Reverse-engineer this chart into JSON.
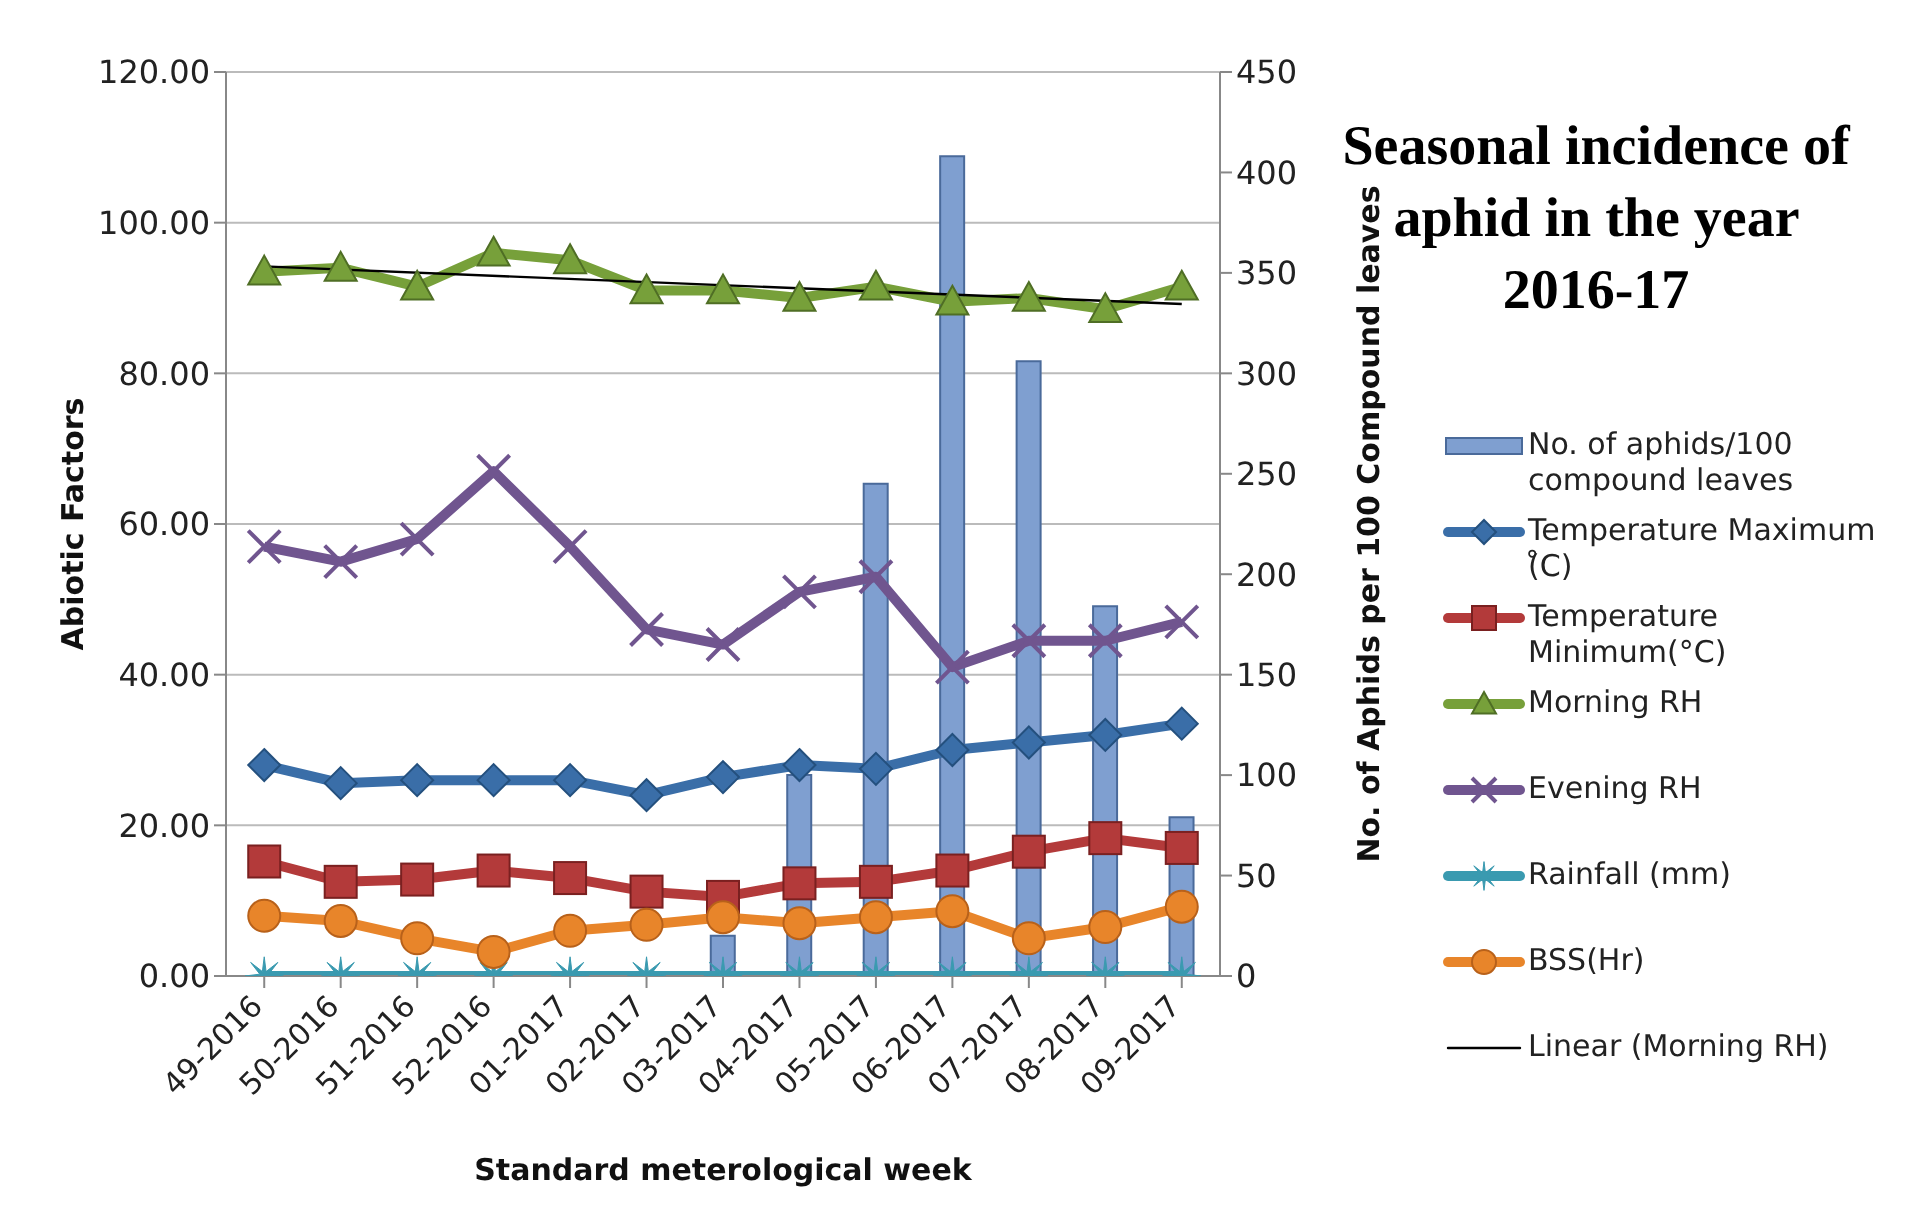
{
  "chart_data": {
    "type": "line",
    "title": "Seasonal incidence of aphid in the year 2016-17",
    "xlabel": "Standard meterological week",
    "ylabel": "Abiotic Factors",
    "y2label": "No. of Aphids per 100 Compound leaves",
    "categories": [
      "49-2016",
      "50-2016",
      "51-2016",
      "52-2016",
      "01-2017",
      "02-2017",
      "03-2017",
      "04-2017",
      "05-2017",
      "06-2017",
      "07-2017",
      "08-2017",
      "09-2017"
    ],
    "series": [
      {
        "name": "No. of aphids/100 compound leaves",
        "type": "bar",
        "axis": "y2",
        "color": "#7f9fd0",
        "values": [
          0,
          0,
          0,
          0,
          0,
          0,
          20,
          100,
          245,
          408,
          306,
          184,
          79
        ]
      },
      {
        "name": "Temperature Maximum (̊C)",
        "marker": "diamond",
        "color": "#3a6ea8",
        "values": [
          28,
          25.6,
          26,
          26,
          26,
          24,
          26.4,
          28,
          27.5,
          30,
          31,
          32,
          33.5
        ]
      },
      {
        "name": "Temperature Minimum(°C)",
        "marker": "square",
        "color": "#b33a3a",
        "values": [
          15.2,
          12.5,
          12.8,
          14,
          13,
          11.2,
          10.5,
          12.3,
          12.5,
          14,
          16.5,
          18.3,
          17
        ]
      },
      {
        "name": "Morning RH",
        "marker": "triangle",
        "color": "#77a03a",
        "values": [
          93.5,
          94,
          91.5,
          96,
          95,
          91,
          91,
          90,
          91.5,
          89.5,
          90,
          88.5,
          91.5
        ]
      },
      {
        "name": "Evening RH",
        "marker": "cross",
        "color": "#70558f",
        "values": [
          57,
          55,
          58,
          67,
          57,
          46,
          44,
          51,
          53,
          41,
          44.5,
          44.5,
          47
        ]
      },
      {
        "name": "Rainfall (mm)",
        "marker": "star",
        "color": "#3a9ab0",
        "values": [
          0,
          0,
          0,
          0,
          0,
          0,
          0,
          0,
          0,
          0,
          0,
          0,
          0
        ]
      },
      {
        "name": "BSS(Hr)",
        "marker": "circle",
        "color": "#e8852a",
        "values": [
          8,
          7.3,
          5,
          3.2,
          6,
          6.8,
          7.8,
          7,
          7.8,
          8.6,
          5,
          6.5,
          9.2
        ]
      },
      {
        "name": "Linear (Morning RH)",
        "marker": "none",
        "line_style": "solid",
        "color": "#000000",
        "values": [
          94.2,
          null,
          null,
          null,
          null,
          null,
          null,
          null,
          null,
          null,
          null,
          null,
          89.2
        ]
      }
    ],
    "ylim": [
      0,
      120
    ],
    "yticks": [
      {
        "value": 0,
        "label": "0.00"
      },
      {
        "value": 20,
        "label": "20.00"
      },
      {
        "value": 40,
        "label": "40.00"
      },
      {
        "value": 60,
        "label": "60.00"
      },
      {
        "value": 80,
        "label": "80.00"
      },
      {
        "value": 100,
        "label": "100.00"
      },
      {
        "value": 120,
        "label": "120.00"
      }
    ],
    "y2lim": [
      0,
      450
    ],
    "y2ticks": [
      0,
      50,
      100,
      150,
      200,
      250,
      300,
      350,
      400,
      450
    ],
    "grid": "y",
    "legend": "right"
  }
}
